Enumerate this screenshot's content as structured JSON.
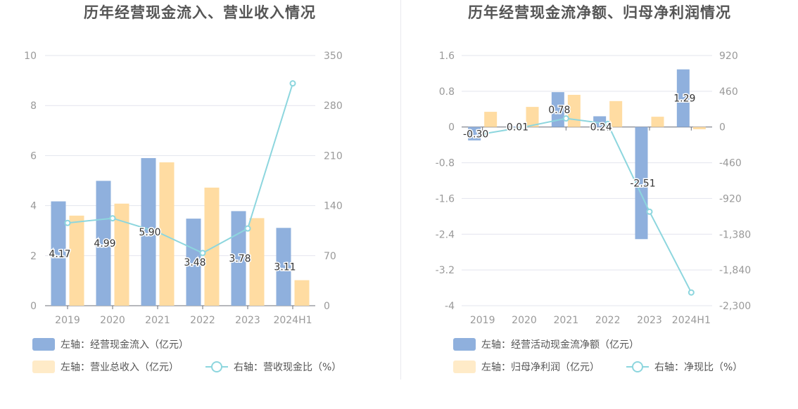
{
  "colors": {
    "bar_primary": "#8fb0dd",
    "bar_secondary": "#ffdca2",
    "line": "#8dd6de",
    "grid": "#e3e4ee",
    "axis_text": "#999999",
    "label_text": "#333333"
  },
  "chart_data": [
    {
      "type": "bar",
      "title": "历年经营现金流入、营业收入情况",
      "categories": [
        "2019",
        "2020",
        "2021",
        "2022",
        "2023",
        "2024H1"
      ],
      "left_axis": {
        "ylim": [
          0,
          10
        ],
        "ticks": [
          "0",
          "2",
          "4",
          "6",
          "8",
          "10"
        ]
      },
      "right_axis": {
        "ylim": [
          0,
          350
        ],
        "ticks": [
          "0",
          "70",
          "140",
          "210",
          "280",
          "350"
        ]
      },
      "series": [
        {
          "name": "左轴：经营现金流入（亿元）",
          "type": "bar",
          "axis": "left",
          "values": [
            4.17,
            4.99,
            5.9,
            3.48,
            3.78,
            3.11
          ],
          "data_labels": [
            "4.17",
            "4.99",
            "5.90",
            "3.48",
            "3.78",
            "3.11"
          ]
        },
        {
          "name": "左轴：营业总收入（亿元）",
          "type": "bar",
          "axis": "left",
          "values": [
            3.6,
            4.08,
            5.73,
            4.72,
            3.5,
            1.02
          ]
        },
        {
          "name": "右轴：营收现金比（%）",
          "type": "line",
          "axis": "right",
          "values": [
            115.8,
            122.3,
            103.0,
            73.7,
            108.0,
            311.0
          ]
        }
      ],
      "grid": true,
      "legend_position": "bottom-left"
    },
    {
      "type": "bar",
      "title": "历年经营现金流净额、归母净利润情况",
      "categories": [
        "2019",
        "2020",
        "2021",
        "2022",
        "2023",
        "2024H1"
      ],
      "left_axis": {
        "ylim": [
          -4,
          1.6
        ],
        "ticks": [
          "-4",
          "-3.2",
          "-2.4",
          "-1.6",
          "-0.8",
          "0",
          "0.8",
          "1.6"
        ]
      },
      "right_axis": {
        "ylim": [
          -2300,
          920
        ],
        "ticks": [
          "-2,300",
          "-1,840",
          "-1,380",
          "-920",
          "-460",
          "0",
          "460",
          "920"
        ]
      },
      "series": [
        {
          "name": "左轴：经营活动现金流净额（亿元）",
          "type": "bar",
          "axis": "left",
          "values": [
            -0.3,
            0.01,
            0.78,
            0.24,
            -2.51,
            1.29
          ],
          "data_labels": [
            "-0.30",
            "0.01",
            "0.78",
            "0.24",
            "-2.51",
            "1.29"
          ]
        },
        {
          "name": "左轴：归母净利润（亿元）",
          "type": "bar",
          "axis": "left",
          "values": [
            0.34,
            0.45,
            0.72,
            0.58,
            0.23,
            -0.05
          ]
        },
        {
          "name": "右轴：净现比（%）",
          "type": "line",
          "axis": "right",
          "values": [
            -90,
            0,
            110,
            40,
            -1090,
            -2130
          ]
        }
      ],
      "grid": true,
      "legend_position": "bottom-left"
    }
  ]
}
